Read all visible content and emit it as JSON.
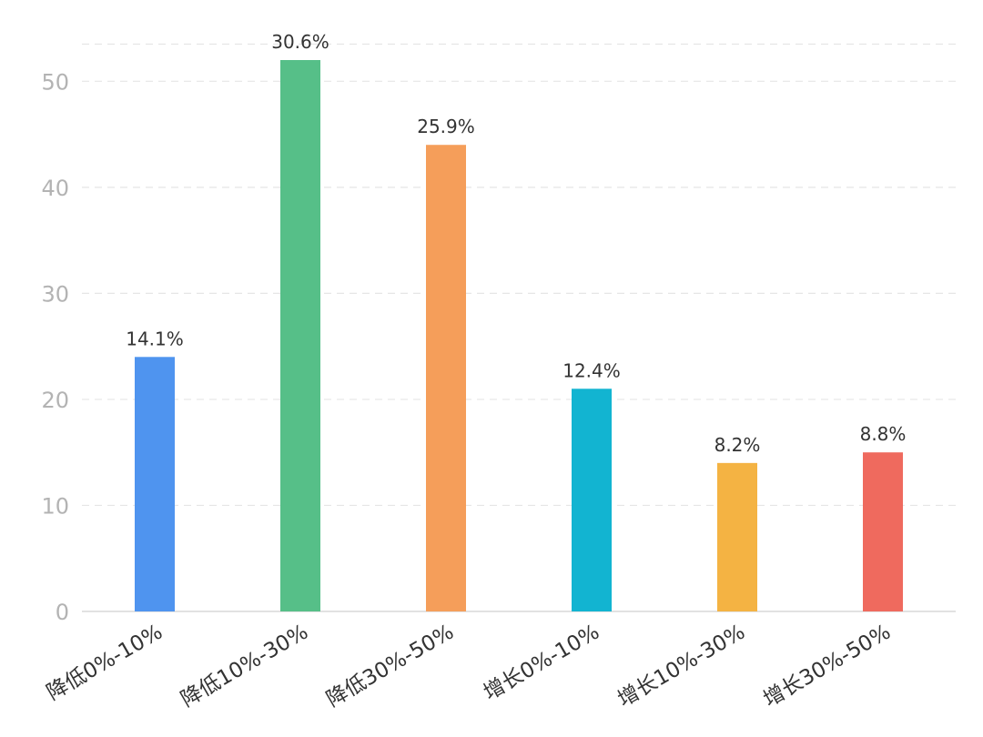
{
  "chart_data": {
    "type": "bar",
    "categories": [
      "降低0%-10%",
      "降低10%-30%",
      "降低30%-50%",
      "增长0%-10%",
      "增长10%-30%",
      "增长30%-50%"
    ],
    "values": [
      24,
      52,
      44,
      21,
      14,
      15
    ],
    "data_labels": [
      "14.1%",
      "30.6%",
      "25.9%",
      "12.4%",
      "8.2%",
      "8.8%"
    ],
    "colors": [
      "#4f94ef",
      "#56bf88",
      "#f59e5a",
      "#12b4d1",
      "#f4b343",
      "#ef6a5e"
    ],
    "yticks": [
      0,
      10,
      20,
      30,
      40,
      50
    ],
    "ylim": [
      0,
      54
    ],
    "grid": true,
    "legend": "none",
    "title": "",
    "xlabel": "",
    "ylabel": ""
  }
}
